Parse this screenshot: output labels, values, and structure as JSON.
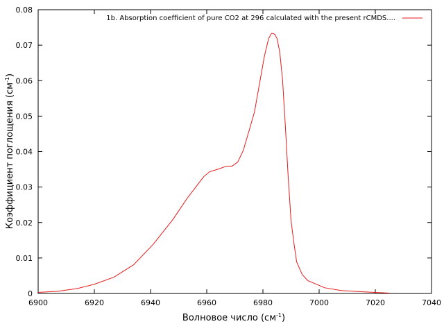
{
  "chart_data": {
    "type": "line",
    "xlabel": "Волновое число (см",
    "xlabel_sup": "-1",
    "xlabel_suffix": ")",
    "ylabel": "Коэффициент поглощения (см",
    "ylabel_sup": "-1",
    "ylabel_suffix": ")",
    "xlim": [
      6900,
      7040
    ],
    "ylim": [
      0,
      0.08
    ],
    "xticks": [
      6900,
      6920,
      6940,
      6960,
      6980,
      7000,
      7020,
      7040
    ],
    "yticks": [
      0,
      0.01,
      0.02,
      0.03,
      0.04,
      0.05,
      0.06,
      0.07,
      0.08
    ],
    "ytick_labels": [
      "0",
      "0.01",
      "0.02",
      "0.03",
      "0.04",
      "0.05",
      "0.06",
      "0.07",
      "0.08"
    ],
    "grid": false,
    "legend_position": "top-right",
    "series": [
      {
        "name": "1b. Absorption coefficient of pure CO2 at 296 calculated with the present rCMDS....",
        "color": "#e41a1c",
        "x": [
          6900,
          6907,
          6914,
          6920,
          6927,
          6934,
          6941,
          6948,
          6953,
          6956,
          6959,
          6961,
          6963,
          6965,
          6967,
          6969,
          6971,
          6973,
          6975,
          6977,
          6979,
          6980.5,
          6982,
          6983,
          6983.7,
          6984.3,
          6985,
          6986,
          6987,
          6988,
          6989,
          6990,
          6991,
          6992,
          6994,
          6996,
          7002,
          7008,
          7015,
          7020,
          7025
        ],
        "y": [
          0.0003,
          0.0006,
          0.0014,
          0.0026,
          0.0046,
          0.0081,
          0.0139,
          0.0209,
          0.0268,
          0.0299,
          0.033,
          0.0343,
          0.0348,
          0.0353,
          0.0359,
          0.0359,
          0.037,
          0.0403,
          0.0457,
          0.0512,
          0.0601,
          0.0668,
          0.0718,
          0.0733,
          0.0733,
          0.073,
          0.0719,
          0.068,
          0.0601,
          0.0469,
          0.0327,
          0.0206,
          0.0144,
          0.0089,
          0.0053,
          0.0036,
          0.0016,
          0.0008,
          0.0005,
          0.0003,
          0.0001
        ]
      }
    ]
  }
}
